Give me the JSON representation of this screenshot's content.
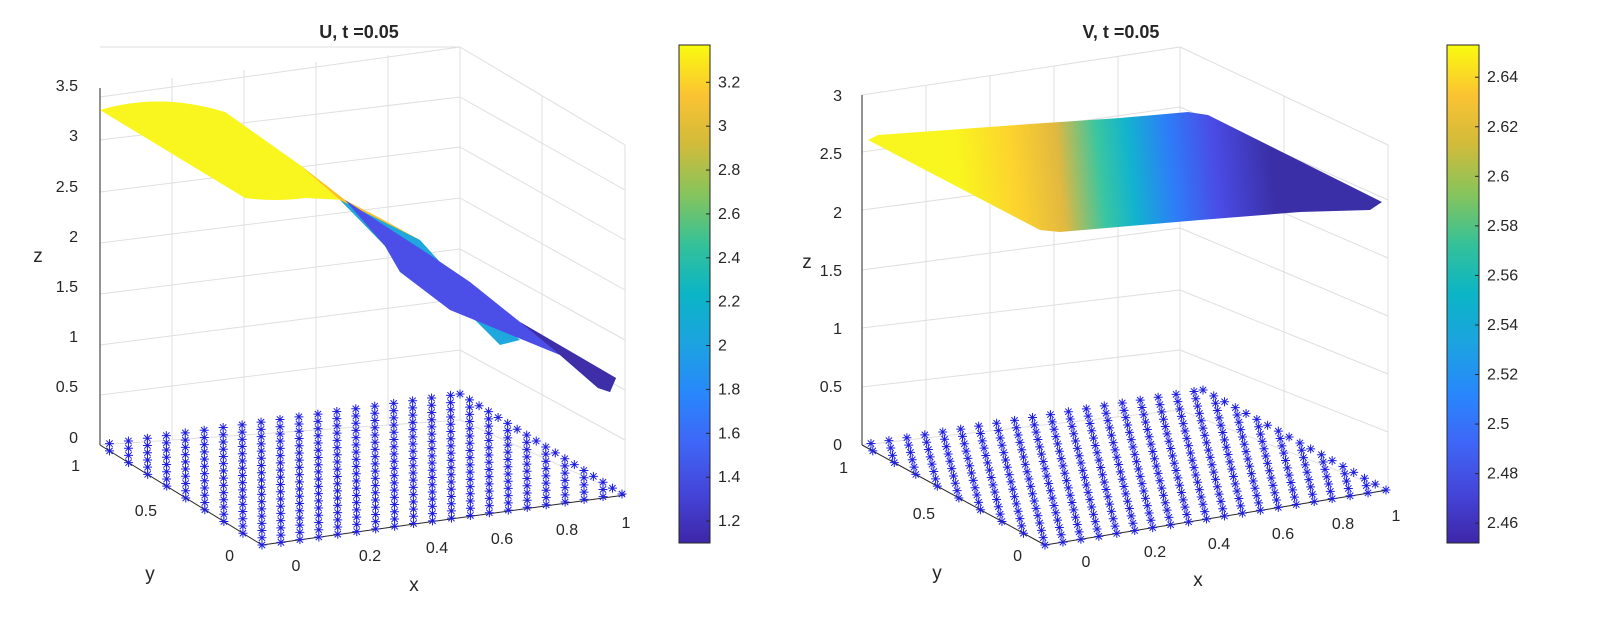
{
  "chart_data": [
    {
      "type": "surface",
      "title": "U, t =0.05",
      "xlabel": "x",
      "ylabel": "y",
      "zlabel": "z",
      "xlim": [
        0,
        1
      ],
      "ylim": [
        0,
        1
      ],
      "zlim": [
        0,
        3.5
      ],
      "x_ticks": [
        "0",
        "0.2",
        "0.4",
        "0.6",
        "0.8",
        "1"
      ],
      "y_ticks": [
        "0",
        "0.5",
        "1"
      ],
      "z_ticks": [
        "0",
        "0.5",
        "1",
        "1.5",
        "2",
        "2.5",
        "3",
        "3.5"
      ],
      "colorbar": {
        "ticks": [
          "1.2",
          "1.4",
          "1.6",
          "1.8",
          "2",
          "2.2",
          "2.4",
          "2.6",
          "2.8",
          "3",
          "3.2"
        ],
        "range": [
          1.1,
          3.37
        ]
      },
      "profile": {
        "x": [
          0,
          0.2,
          0.35,
          0.5,
          0.6,
          0.7,
          0.8,
          1.0
        ],
        "z": [
          3.33,
          3.3,
          3.15,
          2.55,
          1.75,
          1.2,
          1.08,
          1.05
        ]
      },
      "mesh_points": "scattered nodes plotted at z=0 (blue asterisks)"
    },
    {
      "type": "surface",
      "title": "V, t =0.05",
      "xlabel": "x",
      "ylabel": "y",
      "zlabel": "z",
      "xlim": [
        0,
        1
      ],
      "ylim": [
        0,
        1
      ],
      "zlim": [
        0,
        3
      ],
      "x_ticks": [
        "0",
        "0.2",
        "0.4",
        "0.6",
        "0.8",
        "1"
      ],
      "y_ticks": [
        "0",
        "0.5",
        "1"
      ],
      "z_ticks": [
        "0",
        "0.5",
        "1",
        "1.5",
        "2",
        "2.5",
        "3"
      ],
      "colorbar": {
        "ticks": [
          "2.46",
          "2.48",
          "2.5",
          "2.52",
          "2.54",
          "2.56",
          "2.58",
          "2.6",
          "2.62",
          "2.64"
        ],
        "range": [
          2.452,
          2.653
        ]
      },
      "profile": {
        "x": [
          0,
          0.2,
          0.4,
          0.5,
          0.6,
          0.7,
          0.8,
          1.0
        ],
        "z": [
          2.652,
          2.652,
          2.62,
          2.56,
          2.5,
          2.47,
          2.456,
          2.452
        ]
      },
      "mesh_points": "scattered nodes plotted at z=0 (blue asterisks)"
    }
  ]
}
